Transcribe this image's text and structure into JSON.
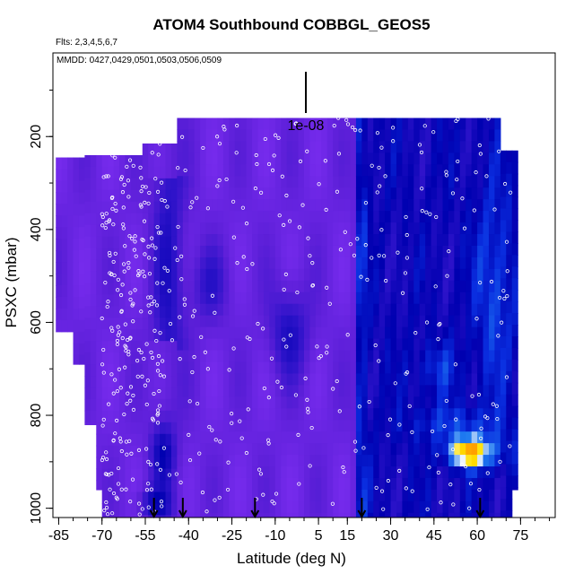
{
  "chart_data": {
    "type": "heatmap",
    "title": "ATOM4 Southbound COBBGL_GEOS5",
    "subtitle_flights": "Flts: 2,3,4,5,6,7",
    "subtitle_dates": "MMDD: 0427,0429,0501,0503,0506,0509",
    "xlabel": "Latitude (deg N)",
    "ylabel": "PSXC (mbar)",
    "xlim": [
      -87,
      87
    ],
    "ylim": [
      1020,
      20
    ],
    "x_ticks": [
      -85,
      -70,
      -55,
      -40,
      -25,
      -10,
      5,
      15,
      30,
      45,
      60,
      75
    ],
    "y_ticks": [
      200,
      400,
      600,
      800,
      1000
    ],
    "scale_label": "1e-08",
    "arrow_latitudes": [
      -52,
      -42,
      -17,
      20,
      61
    ],
    "colormap": [
      "#7a2df0",
      "#5c1fd8",
      "#2a12c8",
      "#0000b0",
      "#0a2ee0",
      "#1e7af0",
      "#ffffff",
      "#ffe000",
      "#ffa000"
    ],
    "colors": {
      "background_level": "#7a2df0",
      "high_level": "#ffe000",
      "low_level": "#0000b0"
    }
  }
}
